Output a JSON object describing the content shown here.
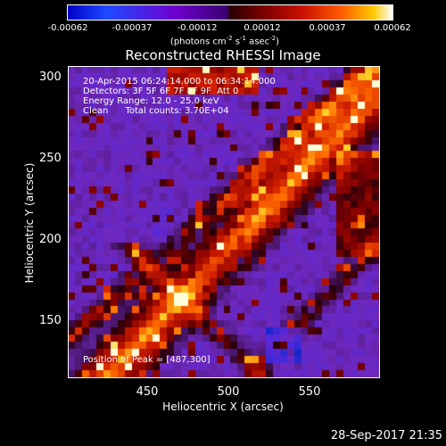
{
  "colorbar": {
    "ticks": [
      "-0.00062",
      "-0.00037",
      "-0.00012",
      "0.00012",
      "0.00037",
      "0.00062"
    ],
    "units": "(photons cm",
    "units_exp1": "-2",
    "units_mid": " s",
    "units_exp2": "-1",
    "units_mid2": " asec",
    "units_exp3": "-2",
    "units_end": ")"
  },
  "title": "Reconstructed RHESSI Image",
  "annotations": {
    "line1": "20-Apr-2015 06:24:14.000 to 06:34:14.000",
    "line2": "Detectors: 3F 5F 6F 7F 8F 9F  Att 0",
    "line3": "Energy Range: 12.0 - 25.0 keV",
    "line4": "Clean      Total counts: 3.70E+04",
    "peak": "Position of Peak = [487,300]"
  },
  "axes": {
    "xlabel": "Heliocentric X (arcsec)",
    "ylabel": "Heliocentric Y (arcsec)",
    "xticks": [
      "450",
      "500",
      "550"
    ],
    "yticks": [
      "300",
      "250",
      "200",
      "150"
    ]
  },
  "datestamp": "28-Sep-2017 21:35",
  "colors": {
    "background": "#000000",
    "frame": "#ffffff"
  }
}
